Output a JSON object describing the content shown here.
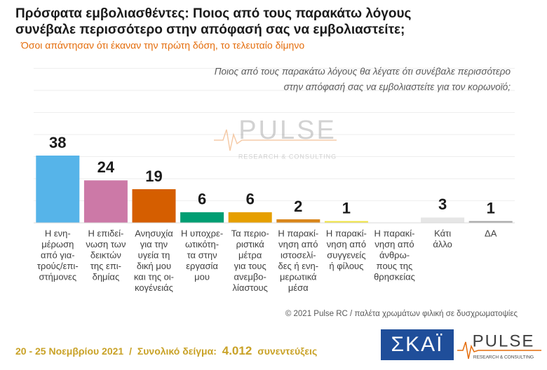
{
  "chart_data": {
    "type": "bar",
    "title": [
      "Πρόσφατα εμβολιασθέντες: Ποιος από τους παρακάτω λόγους",
      "συνέβαλε περισσότερο στην απόφασή σας να εμβολιαστείτε;"
    ],
    "subtitle": "Όσοι απάντησαν ότι έκαναν την πρώτη δόση, το τελευταίο δίμηνο",
    "question": [
      "Ποιος από τους παρακάτω λόγους θα λέγατε ότι συνέβαλε περισσότερο",
      "στην απόφασή σας να εμβολιαστείτε για τον κορωνοϊό;"
    ],
    "categories": [
      [
        "Η ενη-",
        "μέρωση",
        "από για-",
        "τρούς/επι-",
        "στήμονες"
      ],
      [
        "Η επιδεί-",
        "νωση των",
        "δεικτών",
        "της επι-",
        "δημίας"
      ],
      [
        "Ανησυχία",
        "για την",
        "υγεία τη",
        "δική μου",
        "και της οι-",
        "κογένειάς"
      ],
      [
        "Η υποχρε-",
        "ωτικότη-",
        "τα στην",
        "εργασία",
        "μου"
      ],
      [
        "Τα περιο-",
        "ριστικά",
        "μέτρα",
        "για τους",
        "ανεμβο-",
        "λίαστους"
      ],
      [
        "Η παρακί-",
        "νηση από",
        "ιστοσελί-",
        "δες ή ενη-",
        "μερωτικά",
        "μέσα"
      ],
      [
        "Η παρακί-",
        "νηση από",
        "συγγενείς",
        "ή φίλους"
      ],
      [
        "Η παρακί-",
        "νηση από",
        "άνθρω-",
        "πους της",
        "θρησκείας"
      ],
      [
        "Κάτι",
        "άλλο"
      ],
      [
        "ΔΑ"
      ]
    ],
    "values": [
      38,
      24,
      19,
      6,
      6,
      2,
      1,
      null,
      3,
      1
    ],
    "colors": [
      "#56b4e9",
      "#cc79a7",
      "#d55e00",
      "#009e73",
      "#e69f00",
      "#d9861c",
      "#f0e442",
      "#ffffff",
      "#e6e6e6",
      "#a6a6a6"
    ],
    "watermark": [
      "PULSE",
      "RESEARCH & CONSULTING"
    ],
    "copyright": "© 2021 Pulse RC  /  παλέτα χρωμάτων φιλική σε δυσχρωματοψίες",
    "footer": {
      "dates": "20 - 25 Νοεμβρίου 2021",
      "sep": "/",
      "sample_label": "Συνολικό δείγμα:",
      "sample": "4.012",
      "unit": "συνεντεύξεις"
    },
    "logos": [
      "ΣΚΑΪ",
      "PULSE",
      "RESEARCH & CONSULTING"
    ]
  }
}
